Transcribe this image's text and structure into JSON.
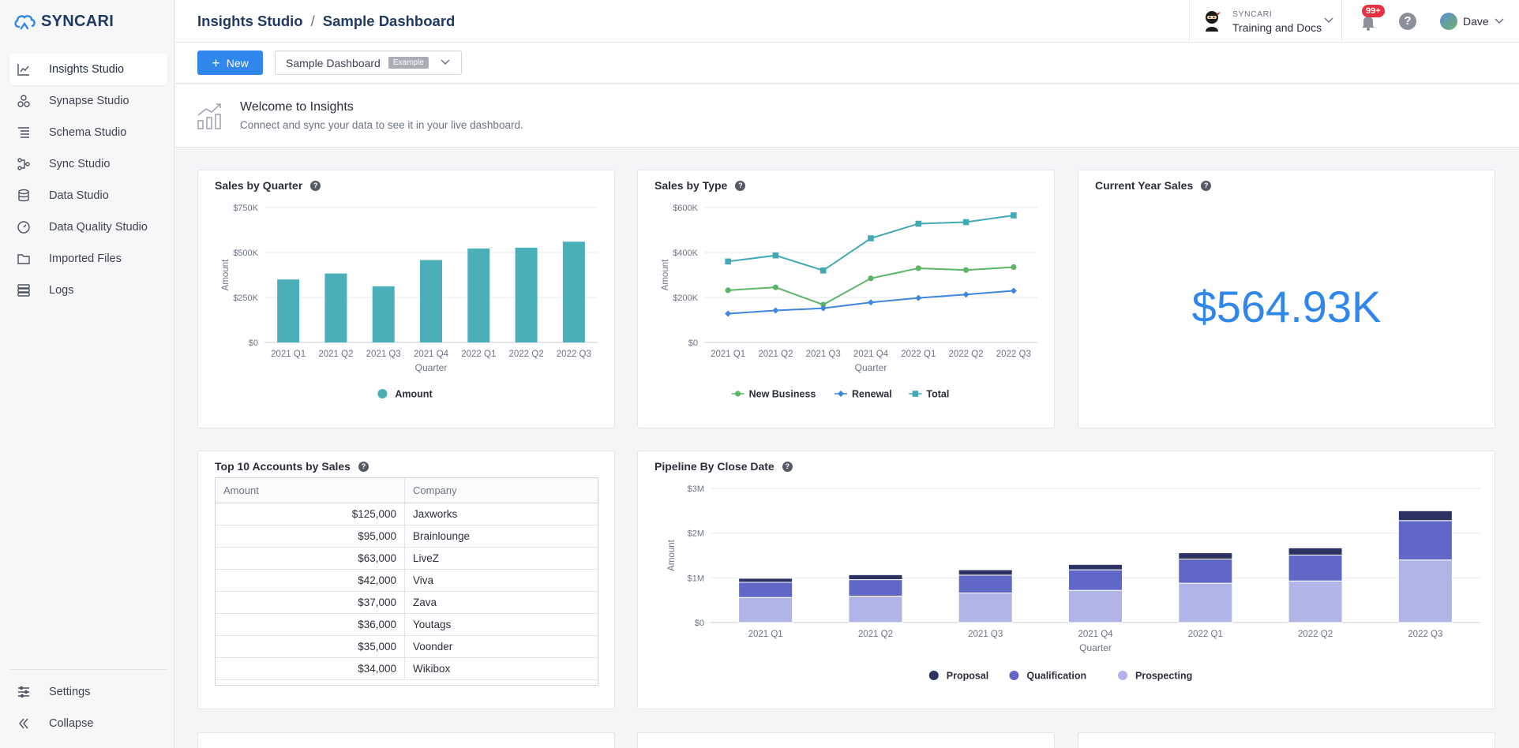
{
  "sidebar": {
    "logo": "SYNCARI",
    "items": [
      {
        "label": "Insights Studio",
        "icon": "insights-chart-icon",
        "active": true
      },
      {
        "label": "Synapse Studio",
        "icon": "synapse-icon"
      },
      {
        "label": "Schema Studio",
        "icon": "schema-icon"
      },
      {
        "label": "Sync Studio",
        "icon": "sync-icon"
      },
      {
        "label": "Data Studio",
        "icon": "database-icon"
      },
      {
        "label": "Data Quality Studio",
        "icon": "gauge-icon"
      },
      {
        "label": "Imported Files",
        "icon": "folder-icon"
      },
      {
        "label": "Logs",
        "icon": "logs-icon"
      }
    ],
    "settings": "Settings",
    "collapse": "Collapse"
  },
  "header": {
    "breadcrumb_root": "Insights Studio",
    "breadcrumb_sep": "/",
    "breadcrumb_page": "Sample Dashboard",
    "org_small": "SYNCARI",
    "org_name": "Training and Docs",
    "badge": "99+",
    "help": "?",
    "user": "Dave"
  },
  "toolbar": {
    "new_label": "New",
    "dashboard": "Sample Dashboard",
    "tag": "Example"
  },
  "welcome": {
    "title": "Welcome to Insights",
    "subtitle": "Connect and sync your data to see it in your live dashboard."
  },
  "cards": {
    "sales_by_quarter": "Sales by Quarter",
    "sales_by_type": "Sales by Type",
    "current_year_sales": "Current Year Sales",
    "top_accounts": "Top 10 Accounts by Sales",
    "pipeline": "Pipeline By Close Date",
    "help": "?"
  },
  "current_year_value": "$564.93K",
  "table": {
    "headers": [
      "Amount",
      "Company"
    ],
    "rows": [
      [
        "$125,000",
        "Jaxworks"
      ],
      [
        "$95,000",
        "Brainlounge"
      ],
      [
        "$63,000",
        "LiveZ"
      ],
      [
        "$42,000",
        "Viva"
      ],
      [
        "$37,000",
        "Zava"
      ],
      [
        "$36,000",
        "Youtags"
      ],
      [
        "$35,000",
        "Voonder"
      ],
      [
        "$34,000",
        "Wikibox"
      ]
    ]
  },
  "chart_data": [
    {
      "type": "bar",
      "title": "Sales by Quarter",
      "categories": [
        "2021 Q1",
        "2021 Q2",
        "2021 Q3",
        "2021 Q4",
        "2022 Q1",
        "2022 Q2",
        "2022 Q3"
      ],
      "series": [
        {
          "name": "Amount",
          "values": [
            350000,
            383000,
            312000,
            458000,
            522000,
            527000,
            560000
          ]
        }
      ],
      "xlabel": "Quarter",
      "ylabel": "Amount",
      "yticks": [
        "$0",
        "$250K",
        "$500K",
        "$750K"
      ],
      "ylim": [
        0,
        750000
      ],
      "color": "#4aafb9",
      "legend": "bottom"
    },
    {
      "type": "line",
      "title": "Sales by Type",
      "categories": [
        "2021 Q1",
        "2021 Q2",
        "2021 Q3",
        "2021 Q4",
        "2022 Q1",
        "2022 Q2",
        "2022 Q3"
      ],
      "series": [
        {
          "name": "New Business",
          "values": [
            232000,
            245000,
            168000,
            285000,
            330000,
            322000,
            335000
          ],
          "color": "#5cb567",
          "marker": "circle"
        },
        {
          "name": "Renewal",
          "values": [
            128000,
            142000,
            152000,
            178000,
            198000,
            213000,
            230000
          ],
          "color": "#3e86e0",
          "marker": "diamond"
        },
        {
          "name": "Total",
          "values": [
            360000,
            387000,
            320000,
            463000,
            528000,
            535000,
            565000
          ],
          "color": "#42a9b5",
          "marker": "square"
        }
      ],
      "xlabel": "Quarter",
      "ylabel": "Amount",
      "yticks": [
        "$0",
        "$200K",
        "$400K",
        "$600K"
      ],
      "ylim": [
        0,
        600000
      ],
      "legend": "bottom"
    },
    {
      "type": "bar",
      "stacked": true,
      "title": "Pipeline By Close Date",
      "categories": [
        "2021 Q1",
        "2021 Q2",
        "2021 Q3",
        "2021 Q4",
        "2022 Q1",
        "2022 Q2",
        "2022 Q3"
      ],
      "series": [
        {
          "name": "Prospecting",
          "values": [
            560000,
            590000,
            660000,
            720000,
            880000,
            930000,
            1400000
          ],
          "color": "#b0b4e6"
        },
        {
          "name": "Qualification",
          "values": [
            340000,
            370000,
            400000,
            460000,
            540000,
            580000,
            880000
          ],
          "color": "#6167c7"
        },
        {
          "name": "Proposal",
          "values": [
            90000,
            110000,
            120000,
            120000,
            140000,
            160000,
            220000
          ],
          "color": "#2c3262"
        }
      ],
      "legend_order": [
        "Proposal",
        "Qualification",
        "Prospecting"
      ],
      "xlabel": "Quarter",
      "ylabel": "Amount",
      "yticks": [
        "$0",
        "$1M",
        "$2M",
        "$3M"
      ],
      "ylim": [
        0,
        3000000
      ],
      "legend": "bottom"
    }
  ]
}
